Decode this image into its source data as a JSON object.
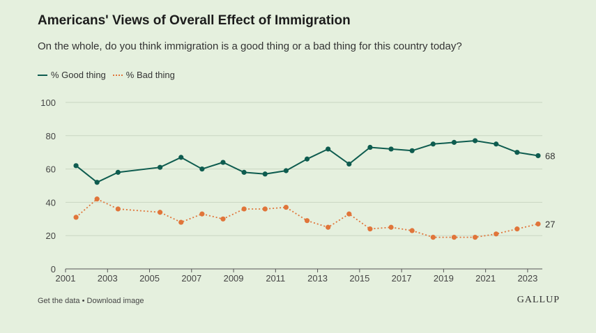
{
  "title": "Americans' Views of Overall Effect of Immigration",
  "subtitle": "On the whole, do you think immigration is a good thing or a bad thing for this country today?",
  "legend": {
    "good": "% Good thing",
    "bad": "% Bad thing"
  },
  "footer": {
    "get_data": "Get the data",
    "separator": " • ",
    "download": "Download image"
  },
  "brand": "GALLUP",
  "colors": {
    "good": "#0e5c4f",
    "bad": "#e0753a",
    "grid": "#c9d6c2",
    "axis": "#555555"
  },
  "chart_data": {
    "type": "line",
    "title": "Americans' Views of Overall Effect of Immigration",
    "xlim": [
      2001,
      2023.7
    ],
    "ylim": [
      0,
      100
    ],
    "x_ticks": [
      2001,
      2003,
      2005,
      2007,
      2009,
      2011,
      2013,
      2015,
      2017,
      2019,
      2021,
      2023
    ],
    "y_ticks": [
      0,
      20,
      40,
      60,
      80,
      100
    ],
    "grid": true,
    "legend_position": "top-left",
    "series": [
      {
        "name": "% Good thing",
        "style": "solid",
        "color": "#0e5c4f",
        "end_label": "68",
        "x": [
          2001.5,
          2002.5,
          2003.5,
          2005.5,
          2006.5,
          2007.5,
          2008.5,
          2009.5,
          2010.5,
          2011.5,
          2012.5,
          2013.5,
          2014.5,
          2015.5,
          2016.5,
          2017.5,
          2018.5,
          2019.5,
          2020.5,
          2021.5,
          2022.5,
          2023.5
        ],
        "values": [
          62,
          52,
          58,
          61,
          67,
          60,
          64,
          58,
          57,
          59,
          66,
          72,
          63,
          73,
          72,
          71,
          75,
          76,
          77,
          75,
          70,
          68
        ]
      },
      {
        "name": "% Bad thing",
        "style": "dotted",
        "color": "#e0753a",
        "end_label": "27",
        "x": [
          2001.5,
          2002.5,
          2003.5,
          2005.5,
          2006.5,
          2007.5,
          2008.5,
          2009.5,
          2010.5,
          2011.5,
          2012.5,
          2013.5,
          2014.5,
          2015.5,
          2016.5,
          2017.5,
          2018.5,
          2019.5,
          2020.5,
          2021.5,
          2022.5,
          2023.5
        ],
        "values": [
          31,
          42,
          36,
          34,
          28,
          33,
          30,
          36,
          36,
          37,
          29,
          25,
          33,
          24,
          25,
          23,
          19,
          19,
          19,
          21,
          24,
          27
        ]
      }
    ]
  }
}
